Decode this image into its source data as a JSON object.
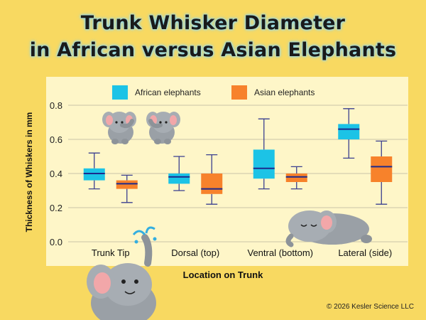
{
  "header": {
    "title_line1": "Trunk Whisker Diameter",
    "title_line2": "in African versus Asian Elephants"
  },
  "footer": {
    "copyright": "© 2026 Kesler Science LLC"
  },
  "colors": {
    "background": "#f8d961",
    "panel": "#fef6c8",
    "african": "#1cc3e6",
    "asian": "#f7822b",
    "median": "#1c2a8c",
    "whisker": "#3a3f8f"
  },
  "decorations": [
    "two-baby-elephants-icon",
    "sleeping-elephant-icon",
    "spraying-elephant-icon"
  ],
  "chart_data": {
    "type": "boxplot",
    "xlabel": "Location on Trunk",
    "ylabel": "Thickness of Whiskers in mm",
    "ylim": [
      0,
      0.85
    ],
    "yticks": [
      "0.0",
      "0.2",
      "0.4",
      "0.6",
      "0.8"
    ],
    "grid": true,
    "legend_position": "top",
    "categories": [
      "Trunk Tip",
      "Dorsal (top)",
      "Ventral (bottom)",
      "Lateral (side)"
    ],
    "series": [
      {
        "name": "African elephants",
        "color": "#1cc3e6",
        "boxes": [
          {
            "min": 0.31,
            "q1": 0.36,
            "median": 0.4,
            "q3": 0.43,
            "max": 0.52
          },
          {
            "min": 0.3,
            "q1": 0.34,
            "median": 0.38,
            "q3": 0.4,
            "max": 0.5
          },
          {
            "min": 0.31,
            "q1": 0.37,
            "median": 0.43,
            "q3": 0.54,
            "max": 0.72
          },
          {
            "min": 0.49,
            "q1": 0.6,
            "median": 0.66,
            "q3": 0.69,
            "max": 0.78
          }
        ]
      },
      {
        "name": "Asian elephants",
        "color": "#f7822b",
        "boxes": [
          {
            "min": 0.23,
            "q1": 0.31,
            "median": 0.34,
            "q3": 0.36,
            "max": 0.39
          },
          {
            "min": 0.22,
            "q1": 0.28,
            "median": 0.31,
            "q3": 0.4,
            "max": 0.51
          },
          {
            "min": 0.31,
            "q1": 0.35,
            "median": 0.38,
            "q3": 0.4,
            "max": 0.44
          },
          {
            "min": 0.22,
            "q1": 0.35,
            "median": 0.44,
            "q3": 0.5,
            "max": 0.59
          }
        ]
      }
    ]
  }
}
